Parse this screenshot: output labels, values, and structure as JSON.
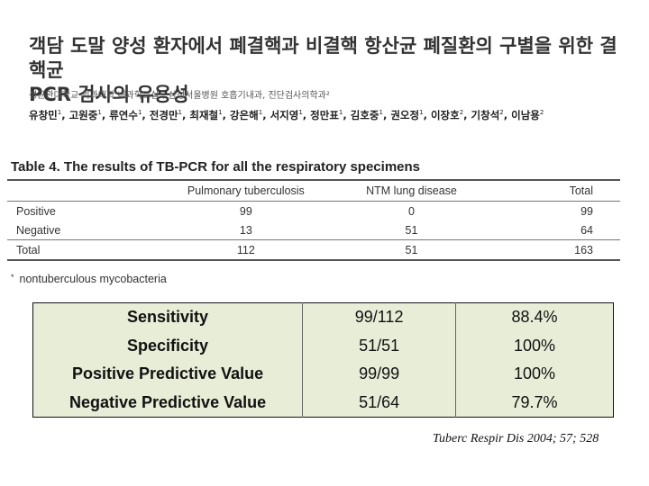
{
  "header": {
    "title_line1": "객담 도말 양성 환자에서 폐결핵과 비결핵 항산균 폐질환의 구별을 위한 결핵균",
    "title_line2": "PCR 검사의 유용성",
    "affiliation": "성균관대학교 의과대학 내과학교실¹, 삼성서울병원 호흡기내과, 진단검사의학과²",
    "authors": [
      {
        "name": "유창민",
        "sup": "1"
      },
      {
        "name": "고원중",
        "sup": "1"
      },
      {
        "name": "류연수",
        "sup": "1"
      },
      {
        "name": "전경만",
        "sup": "1"
      },
      {
        "name": "최재철",
        "sup": "1"
      },
      {
        "name": "강은해",
        "sup": "1"
      },
      {
        "name": "서지영",
        "sup": "1"
      },
      {
        "name": "정만표",
        "sup": "1"
      },
      {
        "name": "김호중",
        "sup": "1"
      },
      {
        "name": "권오정",
        "sup": "1"
      },
      {
        "name": "이장호",
        "sup": "2"
      },
      {
        "name": "기창석",
        "sup": "2"
      },
      {
        "name": "이남용",
        "sup": "2"
      }
    ]
  },
  "table4": {
    "caption": "Table 4. The results of TB-PCR for all the respiratory specimens",
    "columns": [
      "",
      "Pulmonary tuberculosis",
      "NTM lung disease",
      "Total"
    ],
    "rows": [
      {
        "label": "Positive",
        "tb": "99",
        "ntm": "0",
        "total": "99"
      },
      {
        "label": "Negative",
        "tb": "13",
        "ntm": "51",
        "total": "64"
      },
      {
        "label": "Total",
        "tb": "112",
        "ntm": "51",
        "total": "163"
      }
    ],
    "footnote_mark": "*",
    "footnote": "nontuberculous mycobacteria"
  },
  "stats": [
    {
      "label": "Sensitivity",
      "fraction": "99/112",
      "percent": "88.4%"
    },
    {
      "label": "Specificity",
      "fraction": "51/51",
      "percent": "100%"
    },
    {
      "label": "Positive Predictive Value",
      "fraction": "99/99",
      "percent": "100%"
    },
    {
      "label": "Negative Predictive Value",
      "fraction": "51/64",
      "percent": "79.7%"
    }
  ],
  "citation": "Tuberc Respir Dis 2004; 57; 528"
}
